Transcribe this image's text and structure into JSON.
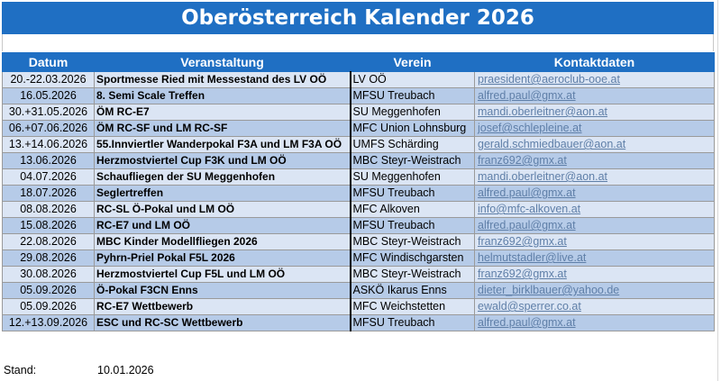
{
  "title": "Oberösterreich Kalender 2026",
  "headers": {
    "date": "Datum",
    "event": "Veranstaltung",
    "verein": "Verein",
    "contact": "Kontaktdaten"
  },
  "rows": [
    {
      "date": "20.-22.03.2026",
      "event": "Sportmesse Ried mit Messestand des LV OÖ",
      "verein": "LV OÖ",
      "contact": "praesident@aeroclub-ooe.at"
    },
    {
      "date": "16.05.2026",
      "event": "8. Semi Scale Treffen",
      "verein": "MFSU Treubach",
      "contact": "alfred.paul@gmx.at"
    },
    {
      "date": "30.+31.05.2026",
      "event": "ÖM RC-E7",
      "verein": "SU Meggenhofen",
      "contact": "mandi.oberleitner@aon.at"
    },
    {
      "date": "06.+07.06.2026",
      "event": "ÖM RC-SF und LM RC-SF",
      "verein": "MFC Union Lohnsburg",
      "contact": "josef@schlepleine.at"
    },
    {
      "date": "13.+14.06.2026",
      "event": "55.Innviertler Wanderpokal F3A und LM F3A OÖ",
      "verein": "UMFS Schärding",
      "contact": "gerald.schmiedbauer@aon.at"
    },
    {
      "date": "13.06.2026",
      "event": "Herzmostviertel Cup F3K und LM OÖ",
      "verein": "MBC Steyr-Weistrach",
      "contact": "franz692@gmx.at"
    },
    {
      "date": "04.07.2026",
      "event": "Schaufliegen der SU Meggenhofen",
      "verein": "SU Meggenhofen",
      "contact": "mandi.oberleitner@aon.at"
    },
    {
      "date": "18.07.2026",
      "event": "Seglertreffen",
      "verein": "MFSU Treubach",
      "contact": "alfred.paul@gmx.at"
    },
    {
      "date": "08.08.2026",
      "event": "RC-SL Ö-Pokal und LM OÖ",
      "verein": "MFC Alkoven",
      "contact": "info@mfc-alkoven.at"
    },
    {
      "date": "15.08.2026",
      "event": "RC-E7 und LM OÖ",
      "verein": "MFSU Treubach",
      "contact": "alfred.paul@gmx.at"
    },
    {
      "date": "22.08.2026",
      "event": "MBC Kinder Modellfliegen 2026",
      "verein": "MBC Steyr-Weistrach",
      "contact": "franz692@gmx.at"
    },
    {
      "date": "29.08.2026",
      "event": "Pyhrn-Priel Pokal F5L 2026",
      "verein": "MFC Windischgarsten",
      "contact": "helmutstadler@live.at"
    },
    {
      "date": "30.08.2026",
      "event": "Herzmostviertel Cup F5L und LM OÖ",
      "verein": "MBC Steyr-Weistrach",
      "contact": "franz692@gmx.at"
    },
    {
      "date": "05.09.2026",
      "event": "Ö-Pokal F3CN Enns",
      "verein": "ASKÖ Ikarus Enns",
      "contact": "dieter_birklbauer@yahoo.de"
    },
    {
      "date": "05.09.2026",
      "event": "RC-E7 Wettbewerb",
      "verein": "MFC Weichstetten",
      "contact": "ewald@sperrer.co.at"
    },
    {
      "date": "12.+13.09.2026",
      "event": "ESC und RC-SC Wettbewerb",
      "verein": "MFSU Treubach",
      "contact": "alfred.paul@gmx.at"
    }
  ],
  "footer": {
    "label": "Stand:",
    "date": "10.01.2026"
  },
  "colors": {
    "header_blue": "#1f6fc3",
    "row_light": "#dbe5f4",
    "row_dark": "#b6cbe8",
    "link": "#5f7fa8"
  }
}
